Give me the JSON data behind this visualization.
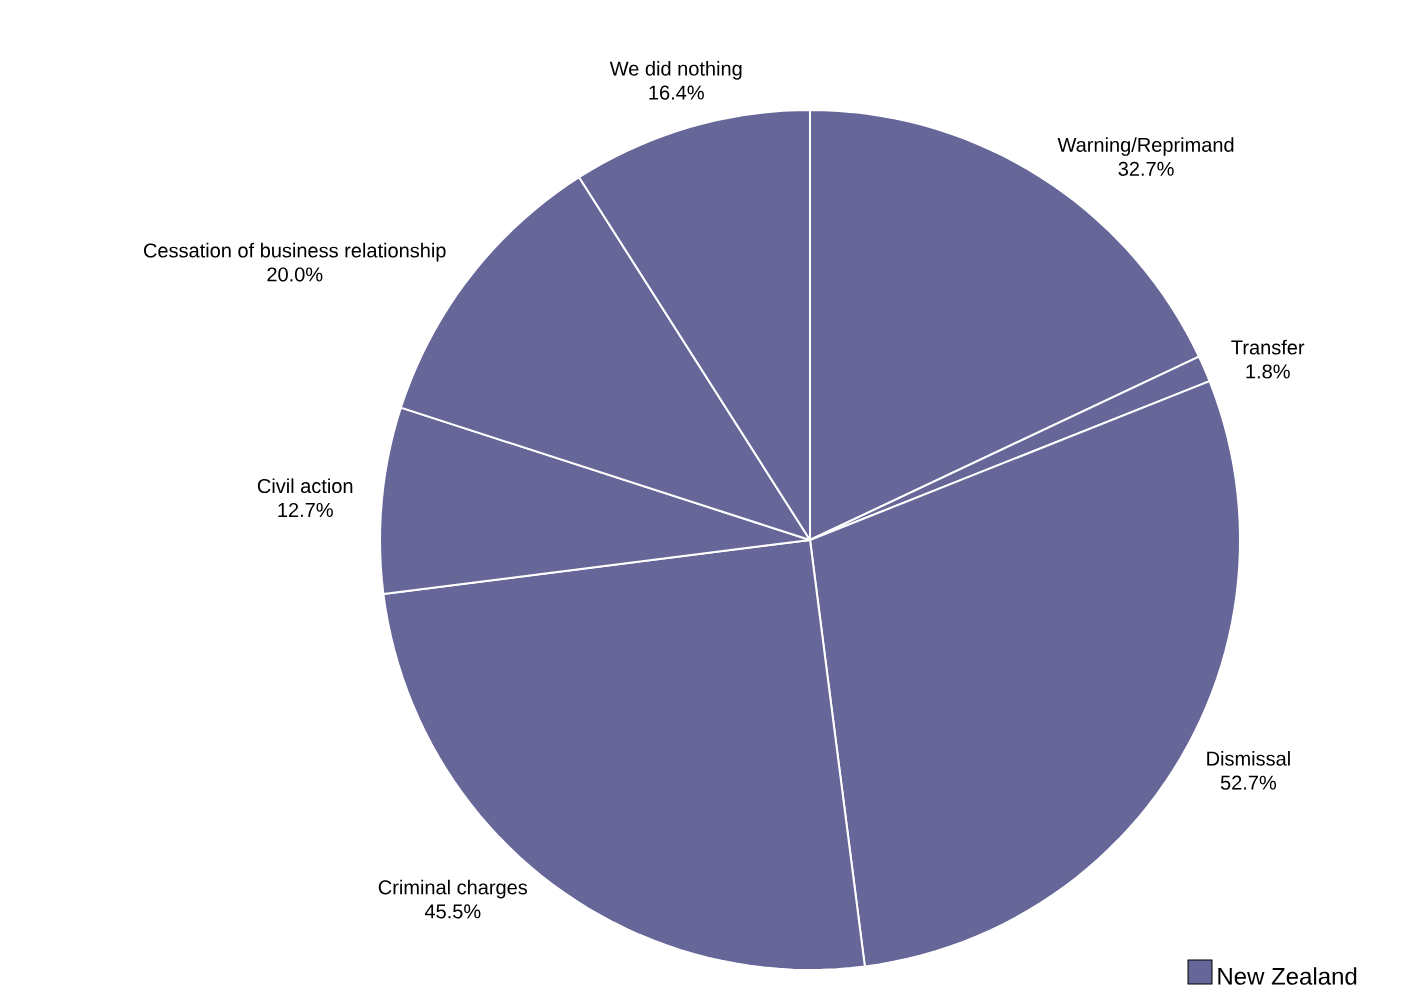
{
  "chart_data": {
    "type": "pie",
    "categories": [
      "Warning/Reprimand",
      "Transfer",
      "Dismissal",
      "Criminal charges",
      "Civil action",
      "Cessation of business relationship",
      "We did nothing"
    ],
    "series": [
      {
        "name": "New Zealand",
        "color": "#666699",
        "values": [
          32.7,
          1.8,
          52.7,
          45.5,
          12.7,
          20.0,
          16.4
        ],
        "value_labels": [
          "32.7%",
          "1.8%",
          "52.7%",
          "45.5%",
          "12.7%",
          "20.0%",
          "16.4%"
        ]
      }
    ],
    "legend": "bottom right"
  }
}
